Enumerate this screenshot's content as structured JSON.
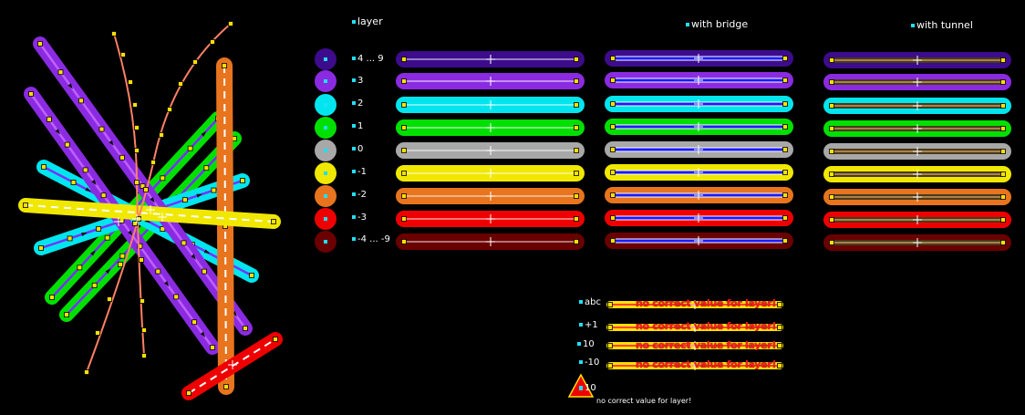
{
  "headers": {
    "layer": "layer",
    "bridge": "with bridge",
    "tunnel": "with tunnel"
  },
  "layers": [
    {
      "label": "4 ... 9",
      "color": "#3d0c8c"
    },
    {
      "label": "3",
      "color": "#8a2be2"
    },
    {
      "label": "2",
      "color": "#00e5ee"
    },
    {
      "label": "1",
      "color": "#00e000"
    },
    {
      "label": "0",
      "color": "#a8a8a8"
    },
    {
      "label": "-1",
      "color": "#f0e800"
    },
    {
      "label": "-2",
      "color": "#e8741e"
    },
    {
      "label": "-3",
      "color": "#ee0000"
    },
    {
      "label": "-4 ... -9",
      "color": "#6a0000"
    }
  ],
  "invalid": {
    "rows": [
      {
        "label": "abc",
        "message": "no correct value for layer!"
      },
      {
        "label": "+1",
        "message": "no correct value for layer!"
      },
      {
        "label": "10",
        "message": "no correct value for layer!"
      },
      {
        "label": "-10",
        "message": "no correct value for layer!"
      }
    ],
    "node_label": "10",
    "node_message": "no correct value for layer!"
  }
}
